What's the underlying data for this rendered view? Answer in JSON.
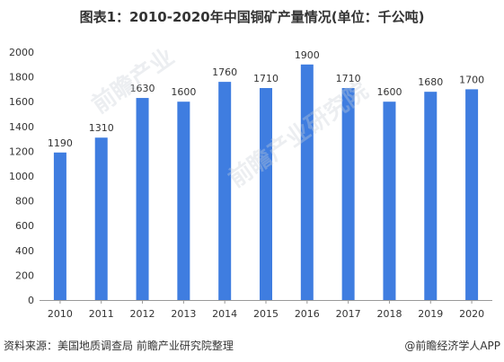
{
  "title": "图表1：2010-2020年中国铜矿产量情况(单位：千公吨)",
  "source": "资料来源：美国地质调查局 前瞻产业研究院整理",
  "credit": "@前瞻经济学人APP",
  "watermarks": [
    "前瞻产业",
    "前瞻产业研究院"
  ],
  "colors": {
    "bar": "#3f7de0",
    "axis": "#999999",
    "text": "#333333"
  },
  "chart_data": {
    "type": "bar",
    "categories": [
      "2010",
      "2011",
      "2012",
      "2013",
      "2014",
      "2015",
      "2016",
      "2017",
      "2018",
      "2019",
      "2020"
    ],
    "values": [
      1190,
      1310,
      1630,
      1600,
      1760,
      1710,
      1900,
      1710,
      1600,
      1680,
      1700
    ],
    "ylim": [
      0,
      2000
    ],
    "yticks": [
      0,
      200,
      400,
      600,
      800,
      1000,
      1200,
      1400,
      1600,
      1800,
      2000
    ],
    "grid": false,
    "legend": "none",
    "data_labels": true
  }
}
